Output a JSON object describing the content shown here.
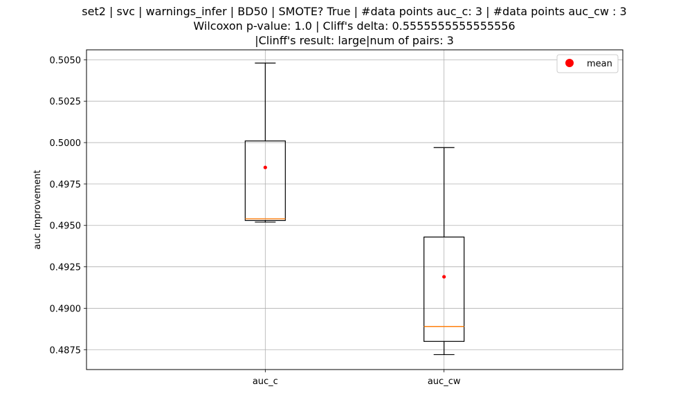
{
  "chart_data": {
    "type": "box",
    "title_lines": [
      "set2 | svc | warnings_infer | BD50 | SMOTE? True | #data points auc_c: 3 | #data points auc_cw : 3",
      "Wilcoxon p-value: 1.0 | Cliff's delta: 0.5555555555555556",
      "|Clinff's result: large|num of pairs: 3"
    ],
    "xlabel": "",
    "ylabel": "auc Improvement",
    "categories": [
      "auc_c",
      "auc_cw"
    ],
    "ylim": [
      0.4863,
      0.5056
    ],
    "yticks": [
      0.4875,
      0.49,
      0.4925,
      0.495,
      0.4975,
      0.5,
      0.5025,
      0.505
    ],
    "ytick_labels": [
      "0.4875",
      "0.4900",
      "0.4925",
      "0.4950",
      "0.4975",
      "0.5000",
      "0.5025",
      "0.5050"
    ],
    "grid": true,
    "boxes": [
      {
        "category": "auc_c",
        "whisker_low": 0.4952,
        "q1": 0.4953,
        "median": 0.4954,
        "q3": 0.5001,
        "whisker_high": 0.5048,
        "mean": 0.4985
      },
      {
        "category": "auc_cw",
        "whisker_low": 0.4872,
        "q1": 0.488,
        "median": 0.4889,
        "q3": 0.4943,
        "whisker_high": 0.4997,
        "mean": 0.4919
      }
    ],
    "legend": {
      "placement": "top-right",
      "entries": [
        {
          "label": "mean",
          "marker": "dot",
          "color": "#ff0000"
        }
      ]
    },
    "colors": {
      "box": "#000000",
      "median": "#ff7f0e",
      "mean": "#ff0000",
      "grid": "#b0b0b0"
    }
  }
}
